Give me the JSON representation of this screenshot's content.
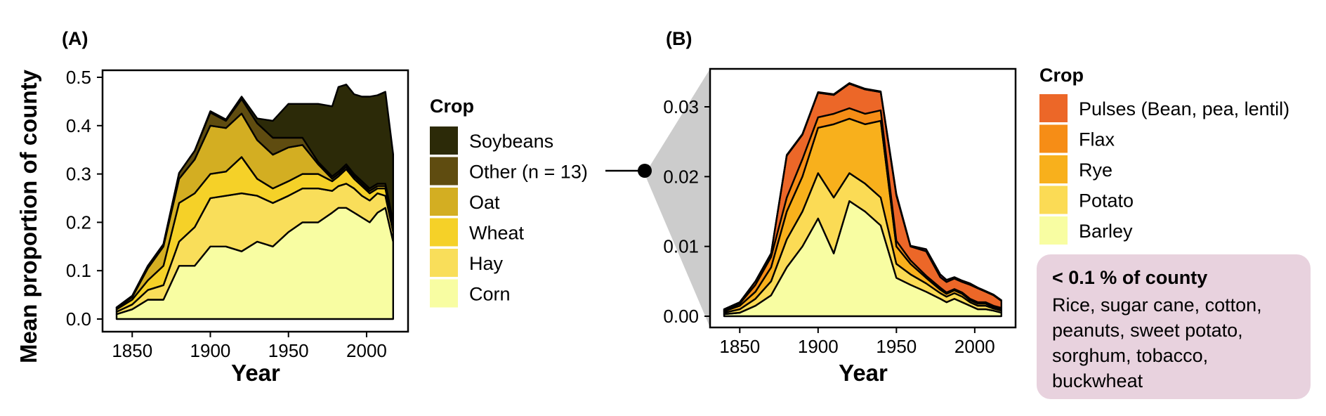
{
  "colors": {
    "Soybeans": "#2c2a08",
    "Other (n = 13)": "#5f4c10",
    "Oat": "#d3ae22",
    "Wheat": "#f5d128",
    "Hay": "#f9de5a",
    "Corn": "#f8fda2",
    "Pulses (Bean, pea, lentil)": "#ec6728",
    "Flax": "#f68d16",
    "Rye": "#f8b01c",
    "Potato": "#fbdb55",
    "Barley": "#f8fda2",
    "<0.1%": "#7a2368",
    "connector": "#cccccc",
    "note_bg": "#e8d2de"
  },
  "chart_data": [
    {
      "panel": "(A)",
      "type": "area",
      "stacked": true,
      "xlabel": "Year",
      "ylabel": "Mean proportion of county",
      "xlim": [
        1840,
        2018
      ],
      "ylim": [
        0,
        0.5
      ],
      "xticks": [
        "1850",
        "1900",
        "1950",
        "2000"
      ],
      "yticks": [
        "0.0",
        "0.1",
        "0.2",
        "0.3",
        "0.4",
        "0.5"
      ],
      "legend_title": "Crop",
      "legend_position": "right",
      "x": [
        1840,
        1850,
        1860,
        1870,
        1880,
        1890,
        1900,
        1910,
        1920,
        1930,
        1940,
        1950,
        1959,
        1969,
        1978,
        1982,
        1987,
        1992,
        1997,
        2002,
        2007,
        2012,
        2017
      ],
      "series": [
        {
          "name": "Corn",
          "values": [
            0.01,
            0.02,
            0.04,
            0.04,
            0.11,
            0.11,
            0.15,
            0.15,
            0.14,
            0.16,
            0.15,
            0.18,
            0.2,
            0.2,
            0.22,
            0.23,
            0.23,
            0.22,
            0.21,
            0.2,
            0.22,
            0.23,
            0.16
          ]
        },
        {
          "name": "Hay",
          "values": [
            0.005,
            0.01,
            0.02,
            0.03,
            0.05,
            0.08,
            0.1,
            0.105,
            0.12,
            0.095,
            0.09,
            0.075,
            0.07,
            0.07,
            0.045,
            0.045,
            0.05,
            0.05,
            0.045,
            0.045,
            0.04,
            0.025,
            0.02
          ]
        },
        {
          "name": "Wheat",
          "values": [
            0.005,
            0.01,
            0.02,
            0.04,
            0.08,
            0.07,
            0.05,
            0.05,
            0.075,
            0.035,
            0.03,
            0.03,
            0.03,
            0.03,
            0.02,
            0.02,
            0.03,
            0.02,
            0.02,
            0.015,
            0.01,
            0.015,
            0.015
          ]
        },
        {
          "name": "Oat",
          "values": [
            0.003,
            0.005,
            0.025,
            0.04,
            0.05,
            0.07,
            0.1,
            0.09,
            0.09,
            0.08,
            0.07,
            0.07,
            0.06,
            0.02,
            0.005,
            0.005,
            0.005,
            0.005,
            0.005,
            0.005,
            0.005,
            0.005,
            0.003
          ]
        },
        {
          "name": "Other (n = 13)",
          "values": [
            0.001,
            0.003,
            0.005,
            0.005,
            0.012,
            0.018,
            0.027,
            0.015,
            0.03,
            0.035,
            0.035,
            0.02,
            0.015,
            0.005,
            0.005,
            0.005,
            0.005,
            0.005,
            0.005,
            0.005,
            0.005,
            0.005,
            0.003
          ]
        },
        {
          "name": "Soybeans",
          "values": [
            0,
            0,
            0,
            0,
            0,
            0,
            0.003,
            0.003,
            0.005,
            0.01,
            0.035,
            0.07,
            0.07,
            0.12,
            0.145,
            0.175,
            0.165,
            0.165,
            0.175,
            0.19,
            0.183,
            0.19,
            0.14
          ]
        }
      ]
    },
    {
      "panel": "(B)",
      "type": "area",
      "stacked": true,
      "xlabel": "Year",
      "ylabel": "",
      "xlim": [
        1840,
        2018
      ],
      "ylim": [
        0,
        0.034
      ],
      "xticks": [
        "1850",
        "1900",
        "1950",
        "2000"
      ],
      "yticks": [
        "0.00",
        "0.01",
        "0.02",
        "0.03"
      ],
      "legend_title": "Crop",
      "legend_position": "right",
      "x": [
        1840,
        1850,
        1860,
        1870,
        1880,
        1890,
        1900,
        1910,
        1920,
        1930,
        1940,
        1950,
        1959,
        1969,
        1978,
        1982,
        1987,
        1992,
        1997,
        2002,
        2007,
        2012,
        2017
      ],
      "series": [
        {
          "name": "Barley",
          "values": [
            0.0003,
            0.0005,
            0.0015,
            0.003,
            0.007,
            0.01,
            0.014,
            0.009,
            0.0165,
            0.015,
            0.013,
            0.0055,
            0.0045,
            0.0035,
            0.0025,
            0.002,
            0.0025,
            0.002,
            0.0015,
            0.001,
            0.001,
            0.0008,
            0.0005
          ]
        },
        {
          "name": "Potato",
          "values": [
            0.0002,
            0.0005,
            0.001,
            0.002,
            0.004,
            0.005,
            0.0065,
            0.008,
            0.004,
            0.004,
            0.004,
            0.002,
            0.0015,
            0.0012,
            0.0008,
            0.0008,
            0.0008,
            0.0008,
            0.0005,
            0.0005,
            0.0005,
            0.0003,
            0.0003
          ]
        },
        {
          "name": "Rye",
          "values": [
            0.0002,
            0.0005,
            0.001,
            0.002,
            0.004,
            0.005,
            0.0065,
            0.0105,
            0.0078,
            0.0085,
            0.011,
            0.0025,
            0.0015,
            0.0008,
            0.0005,
            0.0004,
            0.0004,
            0.0004,
            0.0003,
            0.0003,
            0.0003,
            0.0002,
            0.0002
          ]
        },
        {
          "name": "Flax",
          "values": [
            0.0001,
            0.0003,
            0.001,
            0.0015,
            0.002,
            0.0025,
            0.0015,
            0.0015,
            0.0015,
            0.0015,
            0.0015,
            0.0008,
            0.0005,
            0.0003,
            0.0003,
            0.0002,
            0.0002,
            0.0002,
            0.0002,
            0.0002,
            0.0002,
            0.0002,
            0.0002
          ]
        },
        {
          "name": "Pulses (Bean, pea, lentil)",
          "values": [
            0.0002,
            0.0002,
            0.0005,
            0.0005,
            0.006,
            0.0035,
            0.0035,
            0.0027,
            0.0035,
            0.0035,
            0.0026,
            0.0065,
            0.002,
            0.0035,
            0.0015,
            0.0015,
            0.0015,
            0.0015,
            0.002,
            0.002,
            0.0015,
            0.0015,
            0.001
          ]
        },
        {
          "name": "<0.1%",
          "values": [
            0,
            0,
            0,
            0,
            0.0001,
            0.0001,
            0.0001,
            0.0001,
            0.0001,
            0.0001,
            0.0001,
            0.0002,
            0.0001,
            0.0003,
            0.0004,
            0.0003,
            0.0002,
            0.0002,
            0.0002,
            0.0001,
            0.0001,
            0.0001,
            0.0001
          ]
        }
      ]
    }
  ],
  "legendA": {
    "title": "Crop",
    "items": [
      "Soybeans",
      "Other (n = 13)",
      "Oat",
      "Wheat",
      "Hay",
      "Corn"
    ]
  },
  "legendB": {
    "title": "Crop",
    "items": [
      "Pulses (Bean, pea, lentil)",
      "Flax",
      "Rye",
      "Potato",
      "Barley"
    ]
  },
  "note": {
    "title": "< 0.1 % of county",
    "lines": [
      "Rice, sugar cane, cotton,",
      "peanuts, sweet potato,",
      "sorghum, tobacco,",
      "buckwheat"
    ]
  }
}
